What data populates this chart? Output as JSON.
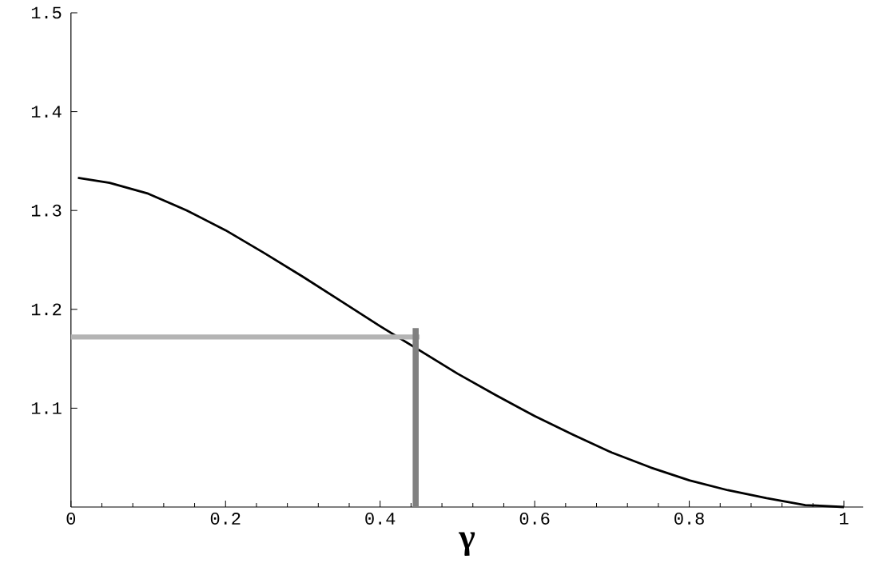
{
  "chart_data": {
    "type": "line",
    "xlabel": "γ",
    "xlim": [
      0,
      1.025
    ],
    "ylim": [
      1,
      1.5
    ],
    "xticks": [
      {
        "value": 0,
        "label": "0"
      },
      0.2,
      0.4,
      0.6,
      0.8,
      {
        "value": 1,
        "label": "1"
      }
    ],
    "yticks": [
      1.1,
      1.2,
      1.3,
      1.4,
      1.5
    ],
    "grid": false,
    "marker": "none",
    "line_style": "solid",
    "series": [
      {
        "color": "#000000",
        "x": [
          0.009,
          0.05,
          0.1,
          0.15,
          0.2,
          0.25,
          0.3,
          0.35,
          0.4,
          0.45,
          0.5,
          0.55,
          0.6,
          0.65,
          0.7,
          0.75,
          0.8,
          0.85,
          0.9,
          0.95,
          1.0
        ],
        "values": [
          1.333,
          1.328,
          1.317,
          1.3,
          1.28,
          1.257,
          1.233,
          1.208,
          1.183,
          1.159,
          1.135,
          1.113,
          1.092,
          1.073,
          1.055,
          1.04,
          1.027,
          1.017,
          1.009,
          1.002,
          1.0
        ]
      },
      {
        "color": "#b4b4b4",
        "x": [
          0,
          0.451
        ],
        "values": [
          1.172,
          1.172
        ]
      },
      {
        "color": "#808080",
        "x": [
          0.446,
          0.446
        ],
        "values": [
          1.0,
          1.181
        ]
      }
    ]
  }
}
